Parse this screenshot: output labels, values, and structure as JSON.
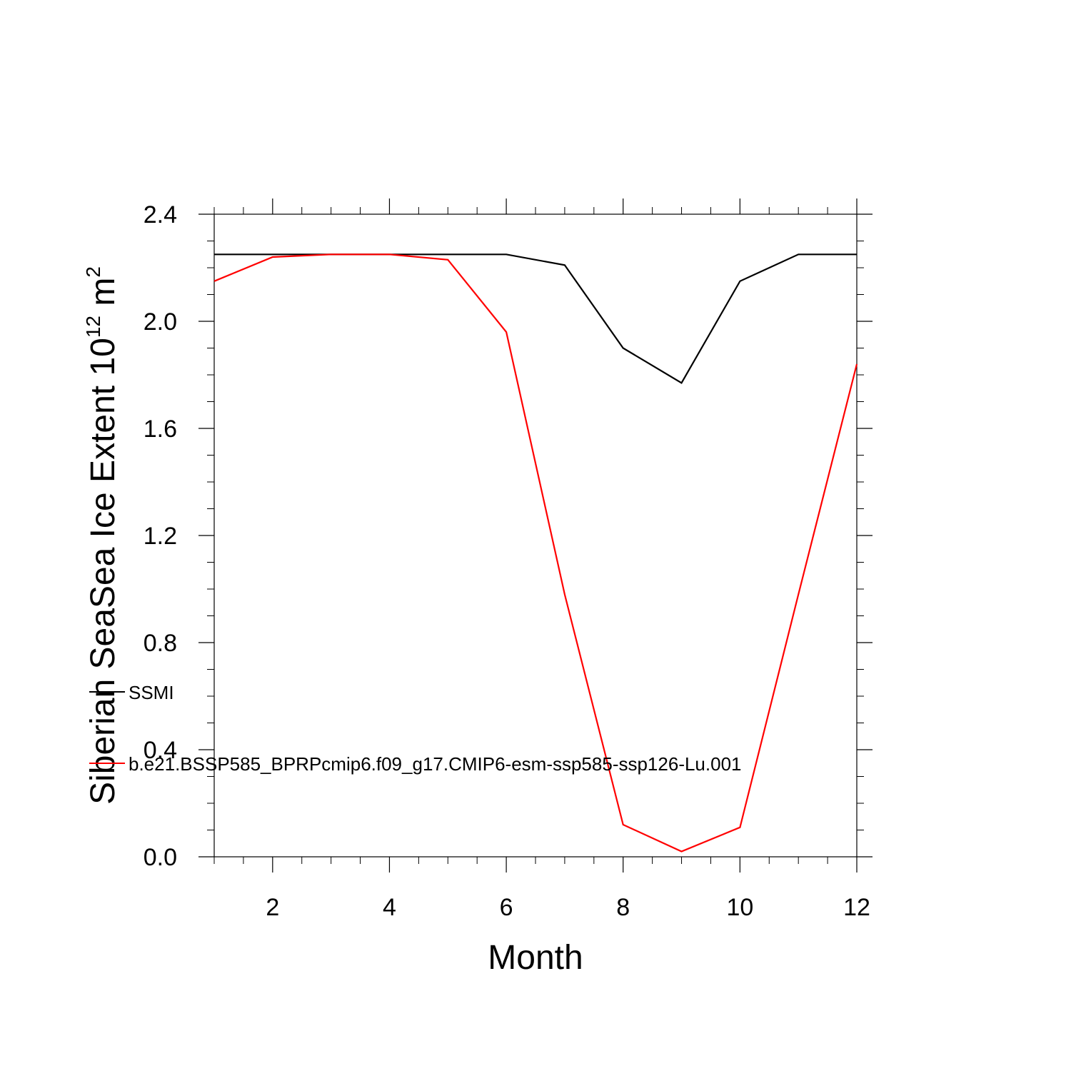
{
  "chart_data": {
    "type": "line",
    "title": "",
    "xlabel": "Month",
    "ylabel": {
      "prefix": "Siberian SeaSea Ice Extent 10",
      "exponent": "12",
      "unit": " m",
      "unit_exponent": "2"
    },
    "x": [
      1,
      2,
      3,
      4,
      5,
      6,
      7,
      8,
      9,
      10,
      11,
      12
    ],
    "xlim": [
      1,
      12
    ],
    "ylim": [
      0,
      2.4
    ],
    "xticks": [
      2,
      4,
      6,
      8,
      10,
      12
    ],
    "xtick_labels": [
      "2",
      "4",
      "6",
      "8",
      "10",
      "12"
    ],
    "yticks": [
      0,
      0.4,
      0.8,
      1.2,
      1.6,
      2.0,
      2.4
    ],
    "ytick_labels": [
      "0.0",
      "0.4",
      "0.8",
      "1.2",
      "1.6",
      "2.0",
      "2.4"
    ],
    "grid": false,
    "legend_position": "left-lower",
    "series": [
      {
        "name": "SSMI",
        "color": "#000000",
        "values": [
          2.25,
          2.25,
          2.25,
          2.25,
          2.25,
          2.25,
          2.21,
          1.9,
          1.77,
          2.15,
          2.25,
          2.25
        ]
      },
      {
        "name": "b.e21.BSSP585_BPRPcmip6.f09_g17.CMIP6-esm-ssp585-ssp126-Lu.001",
        "color": "#ff0000",
        "values": [
          2.15,
          2.24,
          2.25,
          2.25,
          2.23,
          1.96,
          0.98,
          0.12,
          0.02,
          0.11,
          0.98,
          1.84
        ]
      }
    ]
  }
}
